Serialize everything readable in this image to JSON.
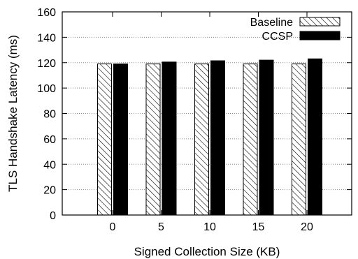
{
  "chart_data": {
    "type": "bar",
    "xlabel": "Signed Collection Size (KB)",
    "ylabel": "TLS Handshake Latency (ms)",
    "ylim": [
      0,
      160
    ],
    "yticks": [
      0,
      20,
      40,
      60,
      80,
      100,
      120,
      140,
      160
    ],
    "categories": [
      "0",
      "5",
      "10",
      "15",
      "20"
    ],
    "grid": "horizontal dotted",
    "legend_position": "top-right",
    "series": [
      {
        "name": "Baseline",
        "values": [
          119,
          119,
          119,
          119,
          119
        ],
        "pattern": "diagonal-hatch",
        "color": "#ffffff"
      },
      {
        "name": "CCSP",
        "values": [
          119,
          120.5,
          121.5,
          122,
          123
        ],
        "pattern": "solid",
        "color": "#000000"
      }
    ]
  }
}
